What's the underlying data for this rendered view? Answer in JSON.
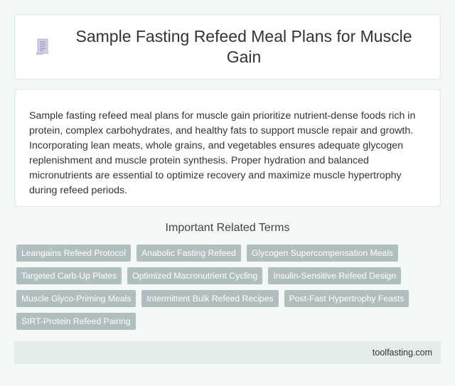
{
  "header": {
    "title": "Sample Fasting Refeed Meal Plans for Muscle Gain",
    "icon": "document-icon"
  },
  "description": "Sample fasting refeed meal plans for muscle gain prioritize nutrient-dense foods rich in protein, complex carbohydrates, and healthy fats to support muscle repair and growth. Incorporating lean meats, whole grains, and vegetables ensures adequate glycogen replenishment and muscle protein synthesis. Proper hydration and balanced micronutrients are essential to optimize recovery and maximize muscle hypertrophy during refeed periods.",
  "related": {
    "title": "Important Related Terms",
    "tags": [
      "Leangains Refeed Protocol",
      "Anabolic Fasting Refeed",
      "Glycogen Supercompensation Meals",
      "Targeted Carb-Up Plates",
      "Optimized Macronutrient Cycling",
      "Insulin-Sensitive Refeed Design",
      "Muscle Glyco-Priming Meals",
      "Intermittent Bulk Refeed Recipes",
      "Post-Fast Hypertrophy Feasts",
      "SIRT-Protein Refeed Pairing"
    ]
  },
  "footer": {
    "site": "toolfasting.com"
  },
  "colors": {
    "tag_bg": "#b0bec0",
    "page_bg": "#f1f8f5",
    "footer_bg": "#e4ede9"
  }
}
